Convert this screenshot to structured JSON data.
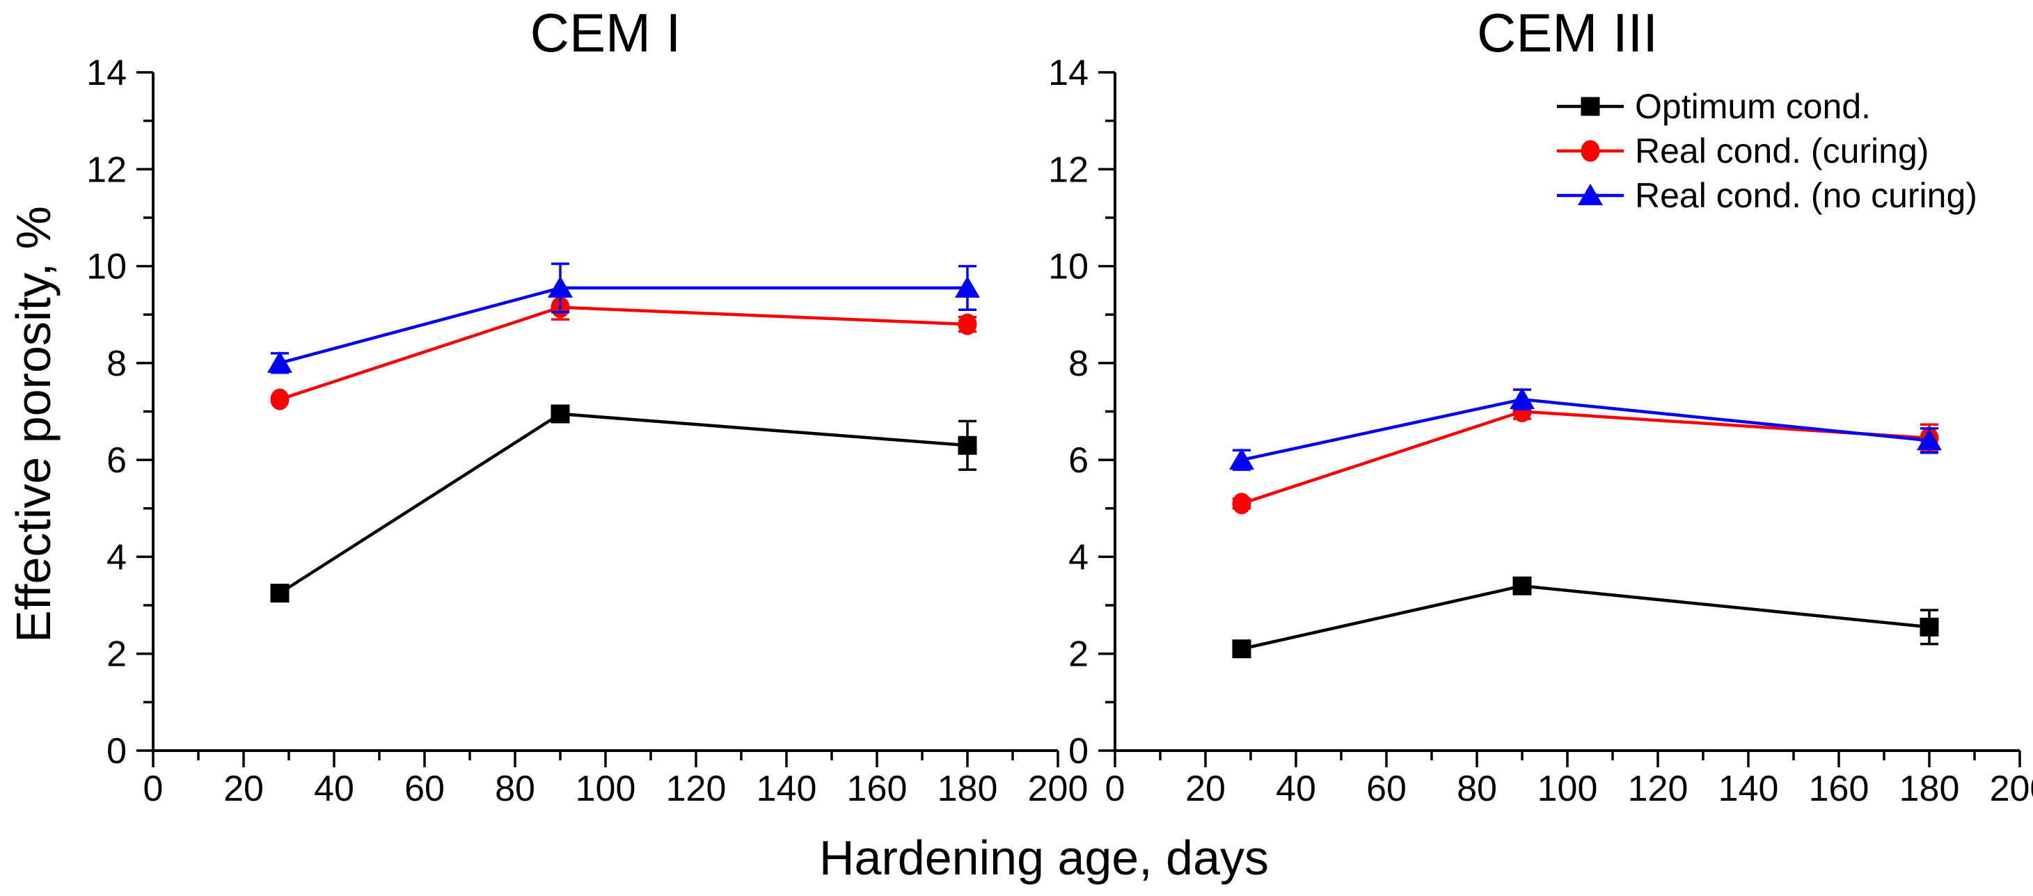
{
  "figure": {
    "x_axis_label": "Hardening age, days",
    "y_axis_label": "Effective porosity, %",
    "background_color": "#ffffff",
    "axis_color": "#000000"
  },
  "legend": {
    "position": "top-right-of-right-panel",
    "border": "none"
  },
  "chart_data": [
    {
      "type": "line",
      "title": "CEM I",
      "xlabel": "Hardening age, days",
      "ylabel": "Effective porosity, %",
      "xlim": [
        0,
        200
      ],
      "ylim": [
        0,
        14
      ],
      "x_ticks": [
        0,
        20,
        40,
        60,
        80,
        100,
        120,
        140,
        160,
        180,
        200
      ],
      "x_minor_step": 10,
      "y_ticks": [
        0,
        2,
        4,
        6,
        8,
        10,
        12,
        14
      ],
      "y_minor_step": 1,
      "grid": false,
      "legend": false,
      "x": [
        28,
        90,
        180
      ],
      "series": [
        {
          "name": "Optimum cond.",
          "color": "#000000",
          "marker": "square",
          "values": [
            3.25,
            6.95,
            6.3
          ],
          "errors": [
            0.1,
            0,
            0.5
          ]
        },
        {
          "name": "Real cond. (curing)",
          "color": "#ff0000",
          "marker": "circle",
          "values": [
            7.25,
            9.15,
            8.8
          ],
          "errors": [
            0,
            0.25,
            0.15
          ]
        },
        {
          "name": "Real cond. (no curing)",
          "color": "#0000ff",
          "marker": "triangle",
          "values": [
            8.0,
            9.55,
            9.55
          ],
          "errors": [
            0.2,
            0.5,
            0.45
          ]
        }
      ]
    },
    {
      "type": "line",
      "title": "CEM III",
      "xlabel": "Hardening age, days",
      "ylabel": "Effective porosity, %",
      "xlim": [
        0,
        200
      ],
      "ylim": [
        0,
        14
      ],
      "x_ticks": [
        0,
        20,
        40,
        60,
        80,
        100,
        120,
        140,
        160,
        180,
        200
      ],
      "x_minor_step": 10,
      "y_ticks": [
        0,
        2,
        4,
        6,
        8,
        10,
        12,
        14
      ],
      "y_minor_step": 1,
      "grid": false,
      "legend": true,
      "x": [
        28,
        90,
        180
      ],
      "series": [
        {
          "name": "Optimum cond.",
          "color": "#000000",
          "marker": "square",
          "values": [
            2.1,
            3.4,
            2.55
          ],
          "errors": [
            0.1,
            0.1,
            0.35
          ]
        },
        {
          "name": "Real cond. (curing)",
          "color": "#ff0000",
          "marker": "circle",
          "values": [
            5.1,
            7.0,
            6.45
          ],
          "errors": [
            0.1,
            0.15,
            0.28
          ]
        },
        {
          "name": "Real cond. (no curing)",
          "color": "#0000ff",
          "marker": "triangle",
          "values": [
            6.0,
            7.25,
            6.4
          ],
          "errors": [
            0.2,
            0.2,
            0.25
          ]
        }
      ]
    }
  ]
}
